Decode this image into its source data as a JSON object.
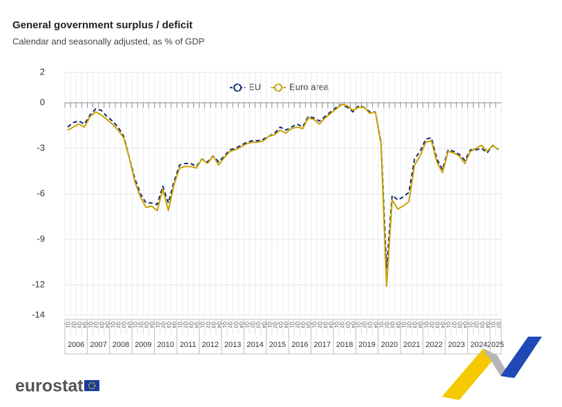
{
  "chart_data": {
    "type": "line",
    "title": "General government surplus / deficit",
    "subtitle": "Calendar and seasonally adjusted, as % of GDP",
    "branding": "eurostat",
    "categories": [
      "Q1",
      "Q2",
      "Q3",
      "Q4",
      "Q1",
      "Q2",
      "Q3",
      "Q4",
      "Q1",
      "Q2",
      "Q3",
      "Q4",
      "Q1",
      "Q2",
      "Q3",
      "Q4",
      "Q1",
      "Q2",
      "Q3",
      "Q4",
      "Q1",
      "Q2",
      "Q3",
      "Q4",
      "Q1",
      "Q2",
      "Q3",
      "Q4",
      "Q1",
      "Q2",
      "Q3",
      "Q4",
      "Q1",
      "Q2",
      "Q3",
      "Q4",
      "Q1",
      "Q2",
      "Q3",
      "Q4",
      "Q1",
      "Q2",
      "Q3",
      "Q4",
      "Q1",
      "Q2",
      "Q3",
      "Q4",
      "Q1",
      "Q2",
      "Q3",
      "Q4",
      "Q1",
      "Q2",
      "Q3",
      "Q4",
      "Q1",
      "Q2",
      "Q3",
      "Q4",
      "Q1",
      "Q2",
      "Q3",
      "Q4",
      "Q1",
      "Q2",
      "Q3",
      "Q4",
      "Q1",
      "Q2",
      "Q3",
      "Q4",
      "Q1",
      "Q2",
      "Q3",
      "Q4",
      "Q1",
      "Q2"
    ],
    "years": [
      "2006",
      "2007",
      "2008",
      "2009",
      "2010",
      "2011",
      "2012",
      "2013",
      "2014",
      "2015",
      "2016",
      "2017",
      "2018",
      "2019",
      "2020",
      "2021",
      "2022",
      "2023",
      "2024",
      "2025"
    ],
    "series": [
      {
        "name": "EU",
        "color": "#0e2b6e",
        "dashed": true,
        "values": [
          -1.6,
          -1.3,
          -1.2,
          -1.4,
          -0.8,
          -0.4,
          -0.5,
          -0.9,
          -1.2,
          -1.6,
          -2.2,
          -3.6,
          -5.0,
          -6.0,
          -6.6,
          -6.6,
          -6.7,
          -5.5,
          -6.6,
          -5.2,
          -4.1,
          -4.0,
          -4.0,
          -4.2,
          -3.7,
          -3.9,
          -3.5,
          -3.9,
          -3.5,
          -3.1,
          -3.0,
          -2.8,
          -2.6,
          -2.5,
          -2.5,
          -2.4,
          -2.2,
          -2.0,
          -1.6,
          -1.8,
          -1.6,
          -1.4,
          -1.6,
          -0.9,
          -1.0,
          -1.2,
          -0.9,
          -0.6,
          -0.3,
          -0.1,
          -0.3,
          -0.6,
          -0.2,
          -0.3,
          -0.6,
          -0.6,
          -2.6,
          -10.9,
          -6.1,
          -6.4,
          -6.2,
          -5.9,
          -3.7,
          -3.2,
          -2.4,
          -2.3,
          -3.7,
          -4.4,
          -3.1,
          -3.2,
          -3.4,
          -3.8,
          -3.1,
          -3.1,
          -3.0,
          -3.3,
          -2.8,
          -3.1
        ]
      },
      {
        "name": "Euro area",
        "color": "#c9a000",
        "dashed": false,
        "values": [
          -1.8,
          -1.6,
          -1.4,
          -1.6,
          -0.9,
          -0.6,
          -0.8,
          -1.1,
          -1.4,
          -1.8,
          -2.3,
          -3.6,
          -5.2,
          -6.2,
          -6.9,
          -6.8,
          -7.1,
          -5.7,
          -7.1,
          -5.4,
          -4.3,
          -4.2,
          -4.2,
          -4.3,
          -3.7,
          -4.0,
          -3.5,
          -4.1,
          -3.6,
          -3.2,
          -3.1,
          -2.9,
          -2.7,
          -2.6,
          -2.6,
          -2.5,
          -2.2,
          -2.1,
          -1.8,
          -2.0,
          -1.7,
          -1.6,
          -1.7,
          -1.0,
          -1.1,
          -1.4,
          -1.0,
          -0.7,
          -0.4,
          -0.1,
          -0.2,
          -0.5,
          -0.3,
          -0.3,
          -0.7,
          -0.6,
          -2.7,
          -12.1,
          -6.4,
          -7.0,
          -6.8,
          -6.5,
          -4.1,
          -3.5,
          -2.6,
          -2.5,
          -3.9,
          -4.6,
          -3.2,
          -3.3,
          -3.5,
          -4.0,
          -3.2,
          -3.0,
          -2.8,
          -3.2,
          -2.8,
          -3.1
        ]
      }
    ],
    "ylim": [
      -14,
      2
    ],
    "yticks": [
      2,
      0,
      -3,
      -6,
      -9,
      -12,
      -14
    ],
    "grid": true,
    "legend": "top"
  }
}
